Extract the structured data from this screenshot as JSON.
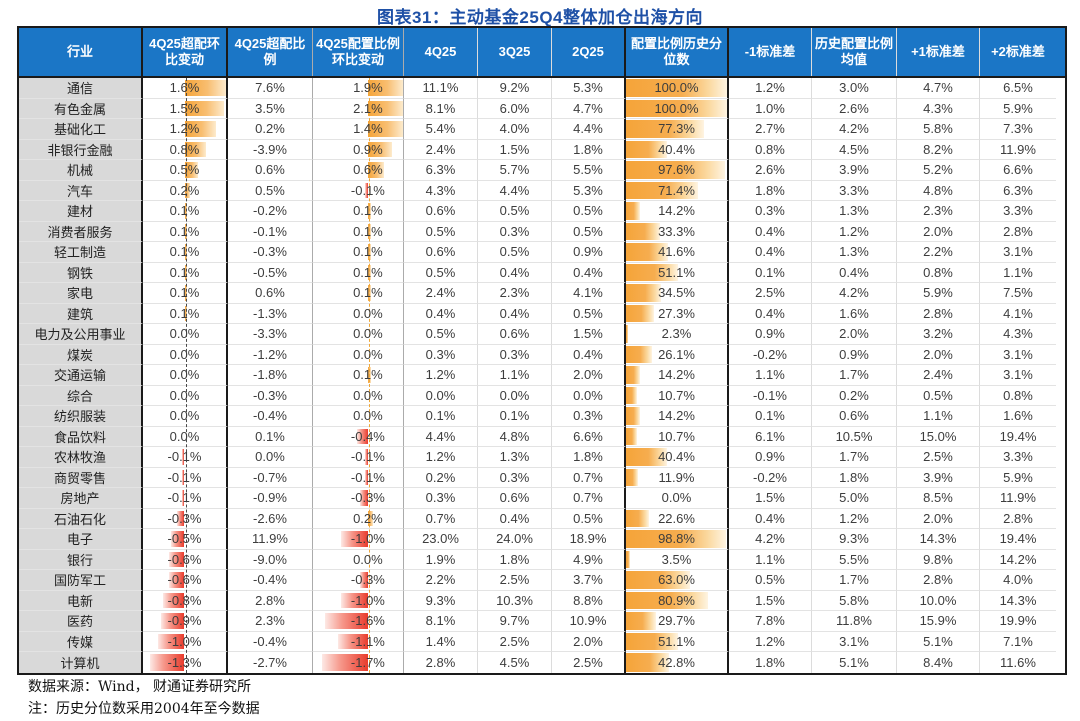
{
  "title": "图表31：主动基金25Q4整体加仓出海方向",
  "notes": {
    "source": "数据来源：Wind， 财通证券研究所",
    "method": "注：历史分位数采用2004年至今数据"
  },
  "colors": {
    "title_blue": "#1E50A6",
    "header_bg": "#1B76C6",
    "industry_col_bg": "#D9D9D9",
    "positive_bar_orange": "#F5A439",
    "negative_bar_red": "#E93B2C",
    "percentile_bar_orange": "#F5A439"
  },
  "chart_data": {
    "type": "table",
    "title": "图表31：主动基金25Q4整体加仓出海方向",
    "unit": "percent",
    "columns": [
      "行业",
      "4Q25超配环比变动",
      "4Q25超配比例",
      "4Q25配置比例环比变动",
      "4Q25",
      "3Q25",
      "2Q25",
      "配置比例历史分位数",
      "-1标准差",
      "历史配置比例均值",
      "+1标准差",
      "+2标准差"
    ],
    "bar_column_indices": {
      "diverging_bars": [
        1,
        3
      ],
      "percentile_bar": 7
    },
    "rows": [
      {
        "industry": "通信",
        "values": [
          1.6,
          7.6,
          1.9,
          11.1,
          9.2,
          5.3,
          100.0,
          1.2,
          3.0,
          4.7,
          6.5
        ]
      },
      {
        "industry": "有色金属",
        "values": [
          1.5,
          3.5,
          2.1,
          8.1,
          6.0,
          4.7,
          100.0,
          1.0,
          2.6,
          4.3,
          5.9
        ]
      },
      {
        "industry": "基础化工",
        "values": [
          1.2,
          0.2,
          1.4,
          5.4,
          4.0,
          4.4,
          77.3,
          2.7,
          4.2,
          5.8,
          7.3
        ]
      },
      {
        "industry": "非银行金融",
        "values": [
          0.8,
          -3.9,
          0.9,
          2.4,
          1.5,
          1.8,
          40.4,
          0.8,
          4.5,
          8.2,
          11.9
        ]
      },
      {
        "industry": "机械",
        "values": [
          0.5,
          0.6,
          0.6,
          6.3,
          5.7,
          5.5,
          97.6,
          2.6,
          3.9,
          5.2,
          6.6
        ]
      },
      {
        "industry": "汽车",
        "values": [
          0.2,
          0.5,
          -0.1,
          4.3,
          4.4,
          5.3,
          71.4,
          1.8,
          3.3,
          4.8,
          6.3
        ]
      },
      {
        "industry": "建材",
        "values": [
          0.1,
          -0.2,
          0.1,
          0.6,
          0.5,
          0.5,
          14.2,
          0.3,
          1.3,
          2.3,
          3.3
        ]
      },
      {
        "industry": "消费者服务",
        "values": [
          0.1,
          -0.1,
          0.1,
          0.5,
          0.3,
          0.5,
          33.3,
          0.4,
          1.2,
          2.0,
          2.8
        ]
      },
      {
        "industry": "轻工制造",
        "values": [
          0.1,
          -0.3,
          0.1,
          0.6,
          0.5,
          0.9,
          41.6,
          0.4,
          1.3,
          2.2,
          3.1
        ]
      },
      {
        "industry": "钢铁",
        "values": [
          0.1,
          -0.5,
          0.1,
          0.5,
          0.4,
          0.4,
          51.1,
          0.1,
          0.4,
          0.8,
          1.1
        ]
      },
      {
        "industry": "家电",
        "values": [
          0.1,
          0.6,
          0.1,
          2.4,
          2.3,
          4.1,
          34.5,
          2.5,
          4.2,
          5.9,
          7.5
        ]
      },
      {
        "industry": "建筑",
        "values": [
          0.1,
          -1.3,
          0.0,
          0.4,
          0.4,
          0.5,
          27.3,
          0.4,
          1.6,
          2.8,
          4.1
        ]
      },
      {
        "industry": "电力及公用事业",
        "values": [
          0.0,
          -3.3,
          0.0,
          0.5,
          0.6,
          1.5,
          2.3,
          0.9,
          2.0,
          3.2,
          4.3
        ]
      },
      {
        "industry": "煤炭",
        "values": [
          0.0,
          -1.2,
          0.0,
          0.3,
          0.3,
          0.4,
          26.1,
          -0.2,
          0.9,
          2.0,
          3.1
        ]
      },
      {
        "industry": "交通运输",
        "values": [
          0.0,
          -1.8,
          0.1,
          1.2,
          1.1,
          2.0,
          14.2,
          1.1,
          1.7,
          2.4,
          3.1
        ]
      },
      {
        "industry": "综合",
        "values": [
          0.0,
          -0.3,
          0.0,
          0.0,
          0.0,
          0.0,
          10.7,
          -0.1,
          0.2,
          0.5,
          0.8
        ]
      },
      {
        "industry": "纺织服装",
        "values": [
          0.0,
          -0.4,
          0.0,
          0.1,
          0.1,
          0.3,
          14.2,
          0.1,
          0.6,
          1.1,
          1.6
        ]
      },
      {
        "industry": "食品饮料",
        "values": [
          0.0,
          0.1,
          -0.4,
          4.4,
          4.8,
          6.6,
          10.7,
          6.1,
          10.5,
          15.0,
          19.4
        ]
      },
      {
        "industry": "农林牧渔",
        "values": [
          -0.1,
          0.0,
          -0.1,
          1.2,
          1.3,
          1.8,
          40.4,
          0.9,
          1.7,
          2.5,
          3.3
        ]
      },
      {
        "industry": "商贸零售",
        "values": [
          -0.1,
          -0.7,
          -0.1,
          0.2,
          0.3,
          0.7,
          11.9,
          -0.2,
          1.8,
          3.9,
          5.9
        ]
      },
      {
        "industry": "房地产",
        "values": [
          -0.1,
          -0.9,
          -0.3,
          0.3,
          0.6,
          0.7,
          0.0,
          1.5,
          5.0,
          8.5,
          11.9
        ]
      },
      {
        "industry": "石油石化",
        "values": [
          -0.3,
          -2.6,
          0.2,
          0.7,
          0.4,
          0.5,
          22.6,
          0.4,
          1.2,
          2.0,
          2.8
        ]
      },
      {
        "industry": "电子",
        "values": [
          -0.5,
          11.9,
          -1.0,
          23.0,
          24.0,
          18.9,
          98.8,
          4.2,
          9.3,
          14.3,
          19.4
        ]
      },
      {
        "industry": "银行",
        "values": [
          -0.6,
          -9.0,
          0.0,
          1.9,
          1.8,
          4.9,
          3.5,
          1.1,
          5.5,
          9.8,
          14.2
        ]
      },
      {
        "industry": "国防军工",
        "values": [
          -0.6,
          -0.4,
          -0.3,
          2.2,
          2.5,
          3.7,
          63.0,
          0.5,
          1.7,
          2.8,
          4.0
        ]
      },
      {
        "industry": "电新",
        "values": [
          -0.8,
          2.8,
          -1.0,
          9.3,
          10.3,
          8.8,
          80.9,
          1.5,
          5.8,
          10.0,
          14.3
        ]
      },
      {
        "industry": "医药",
        "values": [
          -0.9,
          2.3,
          -1.6,
          8.1,
          9.7,
          10.9,
          29.7,
          7.8,
          11.8,
          15.9,
          19.9
        ]
      },
      {
        "industry": "传媒",
        "values": [
          -1.0,
          -0.4,
          -1.1,
          1.4,
          2.5,
          2.0,
          51.1,
          1.2,
          3.1,
          5.1,
          7.1
        ]
      },
      {
        "industry": "计算机",
        "values": [
          -1.3,
          -2.7,
          -1.7,
          2.8,
          4.5,
          2.5,
          42.8,
          1.8,
          5.1,
          8.4,
          11.6
        ]
      }
    ]
  }
}
